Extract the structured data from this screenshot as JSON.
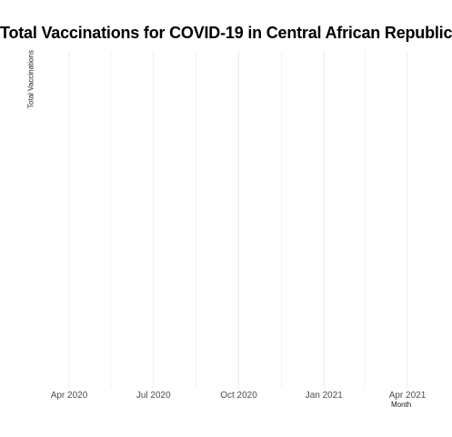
{
  "chart_data": {
    "type": "line",
    "title": "Total Vaccinations for COVID-19 in Central African Republic",
    "xlabel": "Month",
    "ylabel": "Total Vaccinations",
    "x_tick_labels": [
      "Apr 2020",
      "Jul 2020",
      "Oct 2020",
      "Jan 2021",
      "Apr 2021"
    ],
    "x_ticks": [
      "2020-04-01",
      "2020-07-01",
      "2020-10-01",
      "2021-01-01",
      "2021-04-01"
    ],
    "x_minor_ticks": [
      "2020-05-16",
      "2020-08-16",
      "2020-11-16",
      "2021-02-14"
    ],
    "series": [],
    "grid": true,
    "legend": "none",
    "colors": {
      "grid_major": "#ebebeb",
      "grid_minor": "#ebebeb",
      "tick_text": "#4d4d4d"
    }
  }
}
